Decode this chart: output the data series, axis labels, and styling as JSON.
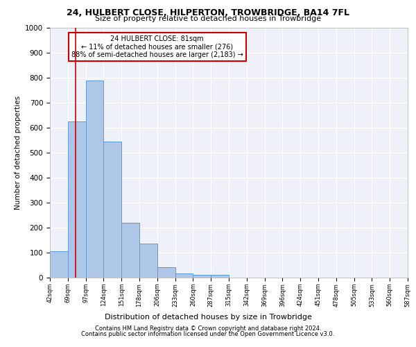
{
  "title1": "24, HULBERT CLOSE, HILPERTON, TROWBRIDGE, BA14 7FL",
  "title2": "Size of property relative to detached houses in Trowbridge",
  "xlabel": "Distribution of detached houses by size in Trowbridge",
  "ylabel": "Number of detached properties",
  "bar_values": [
    105,
    625,
    790,
    545,
    220,
    135,
    42,
    17,
    10,
    12,
    0,
    0,
    0,
    0,
    0,
    0,
    0,
    0,
    0,
    0
  ],
  "bin_labels": [
    "42sqm",
    "69sqm",
    "97sqm",
    "124sqm",
    "151sqm",
    "178sqm",
    "206sqm",
    "233sqm",
    "260sqm",
    "287sqm",
    "315sqm",
    "342sqm",
    "369sqm",
    "396sqm",
    "424sqm",
    "451sqm",
    "478sqm",
    "505sqm",
    "533sqm",
    "560sqm",
    "587sqm"
  ],
  "bar_color": "#aec6e8",
  "bar_edge_color": "#5b9bd5",
  "annotation_text": "24 HULBERT CLOSE: 81sqm\n← 11% of detached houses are smaller (276)\n88% of semi-detached houses are larger (2,183) →",
  "annotation_box_color": "#ffffff",
  "annotation_border_color": "#cc0000",
  "ylim": [
    0,
    1000
  ],
  "yticks": [
    0,
    100,
    200,
    300,
    400,
    500,
    600,
    700,
    800,
    900,
    1000
  ],
  "vline_x": 1.44,
  "vline_color": "#cc0000",
  "background_color": "#eef2f8",
  "footer1": "Contains HM Land Registry data © Crown copyright and database right 2024.",
  "footer2": "Contains public sector information licensed under the Open Government Licence v3.0."
}
